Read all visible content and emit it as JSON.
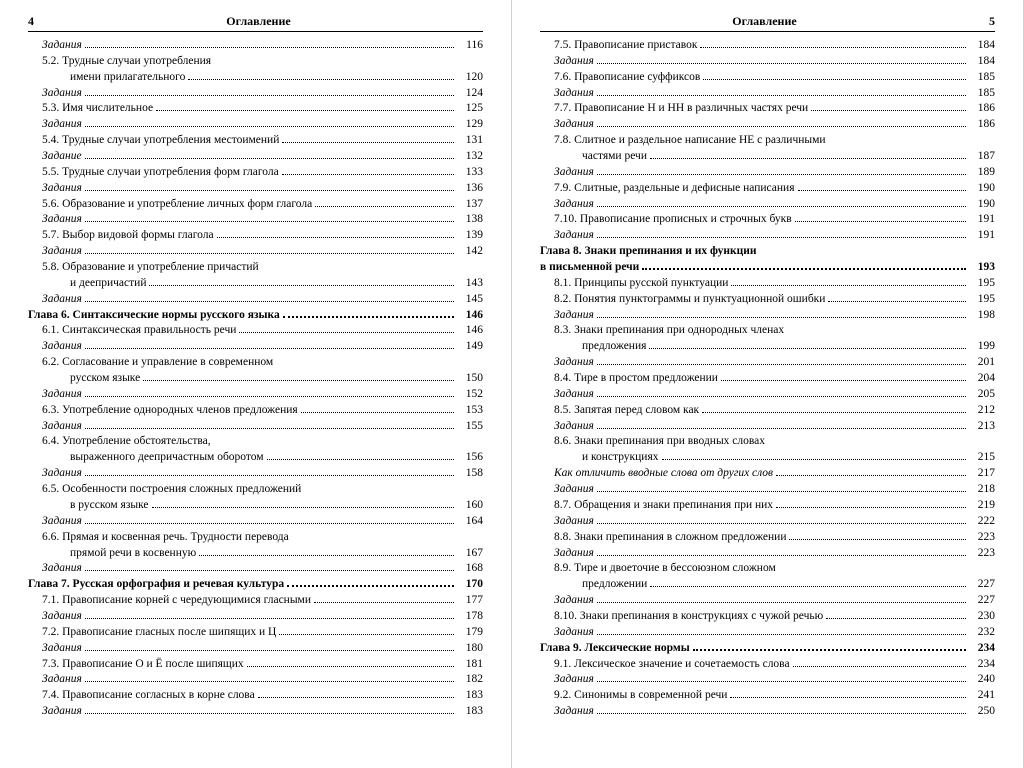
{
  "font_family": "Times New Roman, serif",
  "page_bg": "#ffffff",
  "body_bg": "#f3f3f0",
  "rule_color": "#000000",
  "fontsize_body": 11.5,
  "fontsize_header": 12,
  "left": {
    "page_number": "4",
    "header": "Оглавление",
    "entries": [
      {
        "indent": 1,
        "italic": true,
        "text": "Задания",
        "page": "116"
      },
      {
        "indent": 1,
        "text": "5.2. Трудные случаи употребления"
      },
      {
        "indent": 3,
        "text": "имени прилагательного",
        "page": "120"
      },
      {
        "indent": 1,
        "italic": true,
        "text": "Задания",
        "page": "124"
      },
      {
        "indent": 1,
        "text": "5.3. Имя числительное",
        "page": "125"
      },
      {
        "indent": 1,
        "italic": true,
        "text": "Задания",
        "page": "129"
      },
      {
        "indent": 1,
        "text": "5.4. Трудные случаи употребления местоимений",
        "page": "131"
      },
      {
        "indent": 1,
        "italic": true,
        "text": "Задание",
        "page": "132"
      },
      {
        "indent": 1,
        "text": "5.5. Трудные случаи употребления форм глагола",
        "page": "133"
      },
      {
        "indent": 1,
        "italic": true,
        "text": "Задания",
        "page": "136"
      },
      {
        "indent": 1,
        "text": "5.6. Образование и употребление личных форм глагола",
        "page": "137"
      },
      {
        "indent": 1,
        "italic": true,
        "text": "Задания",
        "page": "138"
      },
      {
        "indent": 1,
        "text": "5.7. Выбор видовой формы глагола",
        "page": "139"
      },
      {
        "indent": 1,
        "italic": true,
        "text": "Задания",
        "page": "142"
      },
      {
        "indent": 1,
        "text": "5.8. Образование и употребление причастий"
      },
      {
        "indent": 3,
        "text": "и деепричастий",
        "page": "143"
      },
      {
        "indent": 1,
        "italic": true,
        "text": "Задания",
        "page": "145"
      },
      {
        "indent": 0,
        "bold": true,
        "text": "Глава 6. Синтаксические нормы русского языка",
        "page": "146"
      },
      {
        "indent": 1,
        "text": "6.1. Синтаксическая правильность речи",
        "page": "146"
      },
      {
        "indent": 1,
        "italic": true,
        "text": "Задания",
        "page": "149"
      },
      {
        "indent": 1,
        "text": "6.2. Согласование и управление в современном"
      },
      {
        "indent": 3,
        "text": "русском языке",
        "page": "150"
      },
      {
        "indent": 1,
        "italic": true,
        "text": "Задания",
        "page": "152"
      },
      {
        "indent": 1,
        "text": "6.3. Употребление однородных членов предложения",
        "page": "153"
      },
      {
        "indent": 1,
        "italic": true,
        "text": "Задания",
        "page": "155"
      },
      {
        "indent": 1,
        "text": "6.4. Употребление обстоятельства,"
      },
      {
        "indent": 3,
        "text": "выраженного деепричастным оборотом",
        "page": "156"
      },
      {
        "indent": 1,
        "italic": true,
        "text": "Задания",
        "page": "158"
      },
      {
        "indent": 1,
        "text": "6.5. Особенности построения сложных предложений"
      },
      {
        "indent": 3,
        "text": "в русском языке",
        "page": "160"
      },
      {
        "indent": 1,
        "italic": true,
        "text": "Задания",
        "page": "164"
      },
      {
        "indent": 1,
        "text": "6.6. Прямая и косвенная речь. Трудности перевода"
      },
      {
        "indent": 3,
        "text": "прямой речи в косвенную",
        "page": "167"
      },
      {
        "indent": 1,
        "italic": true,
        "text": "Задания",
        "page": "168"
      },
      {
        "indent": 0,
        "bold": true,
        "text": "Глава 7. Русская орфография и речевая культура",
        "page": "170"
      },
      {
        "indent": 1,
        "text": "7.1. Правописание корней с чередующимися гласными",
        "page": "177"
      },
      {
        "indent": 1,
        "italic": true,
        "text": "Задания",
        "page": "178"
      },
      {
        "indent": 1,
        "text": "7.2. Правописание гласных после шипящих и Ц",
        "page": "179"
      },
      {
        "indent": 1,
        "italic": true,
        "text": "Задания",
        "page": "180"
      },
      {
        "indent": 1,
        "text": "7.3. Правописание О и Ё после шипящих",
        "page": "181"
      },
      {
        "indent": 1,
        "italic": true,
        "text": "Задания",
        "page": "182"
      },
      {
        "indent": 1,
        "text": "7.4. Правописание согласных в корне слова",
        "page": "183"
      },
      {
        "indent": 1,
        "italic": true,
        "text": "Задания",
        "page": "183"
      }
    ]
  },
  "right": {
    "page_number": "5",
    "header": "Оглавление",
    "entries": [
      {
        "indent": 1,
        "text": "7.5. Правописание приставок",
        "page": "184"
      },
      {
        "indent": 1,
        "italic": true,
        "text": "Задания",
        "page": "184"
      },
      {
        "indent": 1,
        "text": "7.6. Правописание суффиксов",
        "page": "185"
      },
      {
        "indent": 1,
        "italic": true,
        "text": "Задания",
        "page": "185"
      },
      {
        "indent": 1,
        "text": "7.7. Правописание Н и НН в различных частях речи",
        "page": "186"
      },
      {
        "indent": 1,
        "italic": true,
        "text": "Задания",
        "page": "186"
      },
      {
        "indent": 1,
        "text": "7.8. Слитное и раздельное написание НЕ с различными"
      },
      {
        "indent": 3,
        "text": "частями речи",
        "page": "187"
      },
      {
        "indent": 1,
        "italic": true,
        "text": "Задания",
        "page": "189"
      },
      {
        "indent": 1,
        "text": "7.9. Слитные, раздельные и дефисные написания",
        "page": "190"
      },
      {
        "indent": 1,
        "italic": true,
        "text": "Задания",
        "page": "190"
      },
      {
        "indent": 1,
        "text": "7.10. Правописание прописных и строчных букв",
        "page": "191"
      },
      {
        "indent": 1,
        "italic": true,
        "text": "Задания",
        "page": "191"
      },
      {
        "indent": 0,
        "bold": true,
        "text": "Глава 8. Знаки препинания и их функции"
      },
      {
        "indent": 0,
        "bold": true,
        "text": "в письменной речи",
        "page": "193"
      },
      {
        "indent": 1,
        "text": "8.1. Принципы русской пунктуации",
        "page": "195"
      },
      {
        "indent": 1,
        "text": "8.2. Понятия пунктограммы и пунктуационной ошибки",
        "page": "195"
      },
      {
        "indent": 1,
        "italic": true,
        "text": "Задания",
        "page": "198"
      },
      {
        "indent": 1,
        "text": "8.3. Знаки препинания при однородных членах"
      },
      {
        "indent": 3,
        "text": "предложения",
        "page": "199"
      },
      {
        "indent": 1,
        "italic": true,
        "text": "Задания",
        "page": "201"
      },
      {
        "indent": 1,
        "text": "8.4. Тире в простом предложении",
        "page": "204"
      },
      {
        "indent": 1,
        "italic": true,
        "text": "Задания",
        "page": "205"
      },
      {
        "indent": 1,
        "text": "8.5. Запятая перед словом как",
        "page": "212"
      },
      {
        "indent": 1,
        "italic": true,
        "text": "Задания",
        "page": "213"
      },
      {
        "indent": 1,
        "text": "8.6. Знаки препинания при вводных словах"
      },
      {
        "indent": 3,
        "text": "и конструкциях",
        "page": "215"
      },
      {
        "indent": 1,
        "italic": true,
        "text": "Как отличить вводные слова от других слов",
        "page": "217"
      },
      {
        "indent": 1,
        "italic": true,
        "text": "Задания",
        "page": "218"
      },
      {
        "indent": 1,
        "text": "8.7. Обращения и знаки препинания при них",
        "page": "219"
      },
      {
        "indent": 1,
        "italic": true,
        "text": "Задания",
        "page": "222"
      },
      {
        "indent": 1,
        "text": "8.8. Знаки препинания в сложном предложении",
        "page": "223"
      },
      {
        "indent": 1,
        "italic": true,
        "text": "Задания",
        "page": "223"
      },
      {
        "indent": 1,
        "text": "8.9. Тире и двоеточие в бессоюзном сложном"
      },
      {
        "indent": 3,
        "text": "предложении",
        "page": "227"
      },
      {
        "indent": 1,
        "italic": true,
        "text": "Задания",
        "page": "227"
      },
      {
        "indent": 1,
        "text": "8.10. Знаки препинания в конструкциях с чужой речью",
        "page": "230"
      },
      {
        "indent": 1,
        "italic": true,
        "text": "Задания",
        "page": "232"
      },
      {
        "indent": 0,
        "bold": true,
        "text": "Глава 9. Лексические нормы",
        "page": "234"
      },
      {
        "indent": 1,
        "text": "9.1. Лексическое значение и сочетаемость слова",
        "page": "234"
      },
      {
        "indent": 1,
        "italic": true,
        "text": "Задания",
        "page": "240"
      },
      {
        "indent": 1,
        "text": "9.2. Синонимы в современной речи",
        "page": "241"
      },
      {
        "indent": 1,
        "italic": true,
        "text": "Задания",
        "page": "250"
      }
    ]
  }
}
